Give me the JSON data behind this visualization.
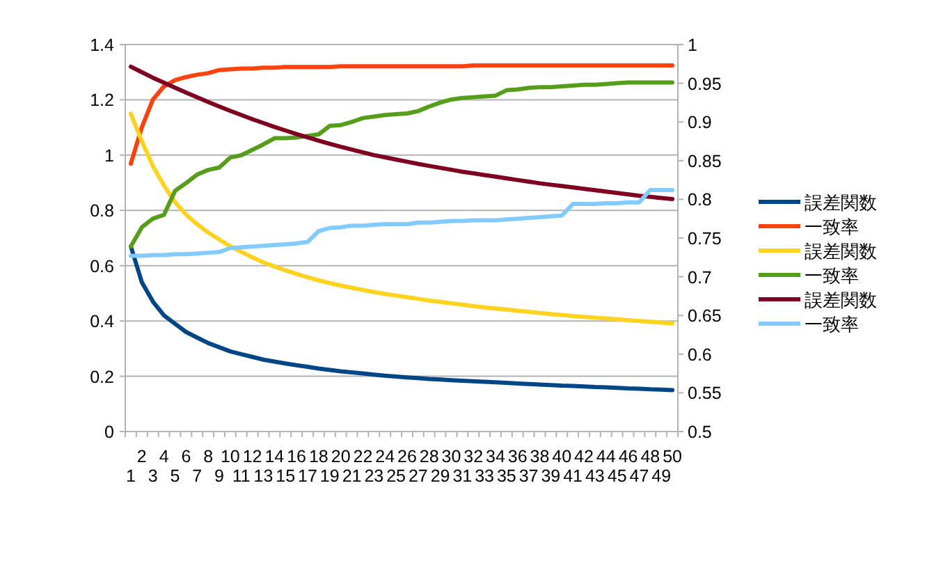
{
  "chart_data": {
    "type": "line",
    "categories": [
      "1",
      "2",
      "3",
      "4",
      "5",
      "6",
      "7",
      "8",
      "9",
      "10",
      "11",
      "12",
      "13",
      "14",
      "15",
      "16",
      "17",
      "18",
      "19",
      "20",
      "21",
      "22",
      "23",
      "24",
      "25",
      "26",
      "27",
      "28",
      "29",
      "30",
      "31",
      "32",
      "33",
      "34",
      "35",
      "36",
      "37",
      "38",
      "39",
      "40",
      "41",
      "42",
      "43",
      "44",
      "45",
      "46",
      "47",
      "48",
      "49",
      "50"
    ],
    "ylim": [
      0,
      1.4
    ],
    "yticks": [
      0,
      0.2,
      0.4,
      0.6,
      0.8,
      1,
      1.2,
      1.4
    ],
    "y2lim": [
      0.5,
      1
    ],
    "y2ticks": [
      0.5,
      0.55,
      0.6,
      0.65,
      0.7,
      0.75,
      0.8,
      0.85,
      0.9,
      0.95,
      1
    ],
    "grid": "y",
    "legend": "right",
    "series": [
      {
        "name": "誤差関数",
        "color": "#004586",
        "values": [
          0.67,
          0.54,
          0.47,
          0.42,
          0.39,
          0.36,
          0.34,
          0.32,
          0.305,
          0.29,
          0.28,
          0.27,
          0.26,
          0.253,
          0.246,
          0.24,
          0.234,
          0.228,
          0.223,
          0.218,
          0.214,
          0.21,
          0.206,
          0.202,
          0.199,
          0.196,
          0.193,
          0.19,
          0.188,
          0.186,
          0.184,
          0.182,
          0.18,
          0.178,
          0.176,
          0.174,
          0.172,
          0.17,
          0.168,
          0.166,
          0.165,
          0.163,
          0.161,
          0.16,
          0.158,
          0.156,
          0.155,
          0.153,
          0.152,
          0.15
        ]
      },
      {
        "name": "一致率",
        "color": "#ff420e",
        "axis": "y2",
        "values": [
          0.846,
          0.893,
          0.929,
          0.946,
          0.954,
          0.958,
          0.961,
          0.963,
          0.967,
          0.968,
          0.969,
          0.969,
          0.97,
          0.97,
          0.971,
          0.971,
          0.971,
          0.971,
          0.971,
          0.972,
          0.972,
          0.972,
          0.972,
          0.972,
          0.972,
          0.972,
          0.972,
          0.972,
          0.972,
          0.972,
          0.972,
          0.973,
          0.973,
          0.973,
          0.973,
          0.973,
          0.973,
          0.973,
          0.973,
          0.973,
          0.973,
          0.973,
          0.973,
          0.973,
          0.973,
          0.973,
          0.973,
          0.973,
          0.973,
          0.973
        ]
      },
      {
        "name": "誤差関数",
        "color": "#ffd320",
        "values": [
          1.15,
          1.05,
          0.96,
          0.89,
          0.83,
          0.785,
          0.75,
          0.72,
          0.695,
          0.67,
          0.65,
          0.63,
          0.612,
          0.597,
          0.583,
          0.57,
          0.558,
          0.547,
          0.537,
          0.528,
          0.52,
          0.512,
          0.505,
          0.498,
          0.492,
          0.486,
          0.48,
          0.474,
          0.469,
          0.464,
          0.459,
          0.454,
          0.449,
          0.445,
          0.441,
          0.437,
          0.433,
          0.429,
          0.425,
          0.422,
          0.418,
          0.415,
          0.412,
          0.409,
          0.406,
          0.403,
          0.4,
          0.397,
          0.394,
          0.391
        ]
      },
      {
        "name": "一致率",
        "color": "#579d1c",
        "axis": "y2",
        "values": [
          0.739,
          0.764,
          0.775,
          0.78,
          0.811,
          0.821,
          0.832,
          0.838,
          0.841,
          0.854,
          0.857,
          0.864,
          0.871,
          0.879,
          0.879,
          0.88,
          0.882,
          0.884,
          0.895,
          0.896,
          0.9,
          0.905,
          0.907,
          0.909,
          0.91,
          0.911,
          0.914,
          0.92,
          0.925,
          0.929,
          0.931,
          0.932,
          0.933,
          0.934,
          0.941,
          0.942,
          0.944,
          0.945,
          0.945,
          0.946,
          0.947,
          0.948,
          0.948,
          0.949,
          0.95,
          0.951,
          0.951,
          0.951,
          0.951,
          0.951
        ]
      },
      {
        "name": "誤差関数",
        "color": "#7e0021",
        "values": [
          1.32,
          1.3,
          1.28,
          1.262,
          1.244,
          1.226,
          1.209,
          1.192,
          1.176,
          1.16,
          1.145,
          1.13,
          1.116,
          1.102,
          1.089,
          1.076,
          1.064,
          1.052,
          1.041,
          1.03,
          1.02,
          1.01,
          1.0,
          0.992,
          0.984,
          0.976,
          0.968,
          0.961,
          0.954,
          0.947,
          0.94,
          0.934,
          0.928,
          0.922,
          0.916,
          0.91,
          0.904,
          0.898,
          0.893,
          0.888,
          0.883,
          0.878,
          0.873,
          0.868,
          0.863,
          0.858,
          0.853,
          0.849,
          0.845,
          0.841
        ]
      },
      {
        "name": "一致率",
        "color": "#83caff",
        "axis": "y2",
        "values": [
          0.727,
          0.727,
          0.728,
          0.728,
          0.729,
          0.729,
          0.73,
          0.731,
          0.732,
          0.737,
          0.738,
          0.739,
          0.74,
          0.741,
          0.742,
          0.743,
          0.745,
          0.759,
          0.763,
          0.764,
          0.766,
          0.766,
          0.767,
          0.768,
          0.768,
          0.768,
          0.77,
          0.77,
          0.771,
          0.772,
          0.772,
          0.773,
          0.773,
          0.773,
          0.774,
          0.775,
          0.776,
          0.777,
          0.778,
          0.779,
          0.794,
          0.794,
          0.794,
          0.795,
          0.795,
          0.796,
          0.796,
          0.812,
          0.812,
          0.812
        ]
      }
    ]
  }
}
